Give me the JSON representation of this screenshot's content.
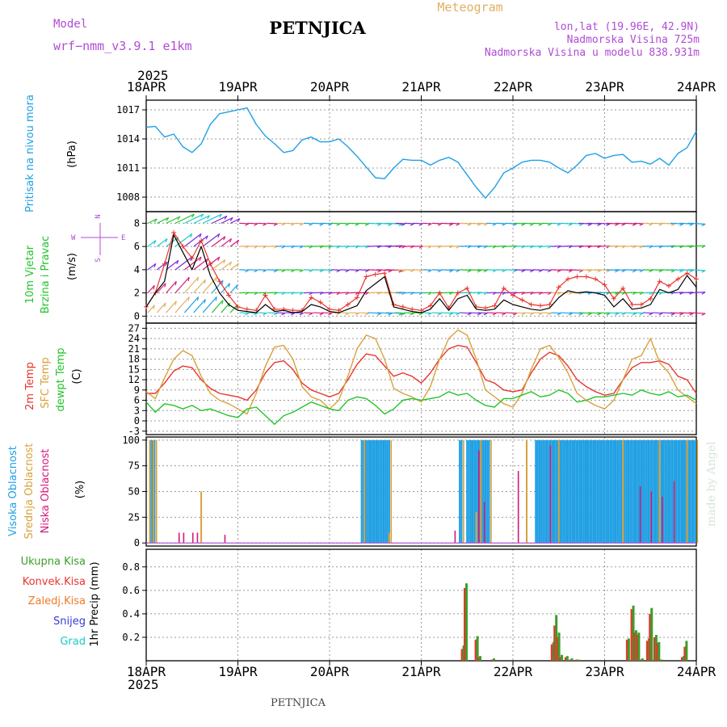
{
  "header": {
    "model_label": "Model",
    "model_name": "wrf−nmm_v3.9.1 e1km",
    "station_title": "PETNJICA",
    "meteogram_label": "Meteogram",
    "lonlat": "lon,lat (19.96E, 42.9N)",
    "altitude": "Nadmorska Visina 725m",
    "model_altitude": "Nadmorska Visina u modelu 838.931m",
    "watermark": "made by Angel",
    "footer_station": "PETNJICA",
    "year_top": "2025",
    "year_bottom": "2025"
  },
  "colors": {
    "pressure": "#1ea0e6",
    "temp2m": "#e8352d",
    "sfc_temp": "#d9a13a",
    "dewpoint": "#22c42a",
    "wind_speed": "#000000",
    "gust": "#e8352d",
    "high_cloud": "#1ea0e6",
    "mid_cloud": "#d9a13a",
    "low_cloud": "#d6197a",
    "total_precip": "#3a9e2a",
    "conv_precip": "#e8352d",
    "frozen_precip": "#f07a2a",
    "snow": "#3a3ad9",
    "graupel": "#1ec8c8",
    "model_label": "#b04bd6",
    "meteogram_label": "#e0b060"
  },
  "chart_data": [
    {
      "id": "pressure",
      "type": "line",
      "ylabel_colored": "Pritisak na nivou mora",
      "unit": "(hPa)",
      "x_ticks": [
        "18APR",
        "19APR",
        "20APR",
        "21APR",
        "22APR",
        "23APR",
        "24APR"
      ],
      "ylim": [
        1006.5,
        1018
      ],
      "yticks": [
        1008,
        1011,
        1014,
        1017
      ],
      "grid": true,
      "x": [
        0,
        0.1,
        0.2,
        0.3,
        0.4,
        0.5,
        0.6,
        0.7,
        0.8,
        0.9,
        1.0,
        1.1,
        1.2,
        1.3,
        1.4,
        1.5,
        1.6,
        1.7,
        1.8,
        1.9,
        2.0,
        2.1,
        2.2,
        2.3,
        2.4,
        2.5,
        2.6,
        2.7,
        2.8,
        2.9,
        3.0,
        3.1,
        3.2,
        3.3,
        3.4,
        3.5,
        3.6,
        3.7,
        3.8,
        3.9,
        4.0,
        4.1,
        4.2,
        4.3,
        4.4,
        4.5,
        4.6,
        4.7,
        4.8,
        4.9,
        5.0,
        5.1,
        5.2,
        5.3,
        5.4,
        5.5,
        5.6,
        5.7,
        5.8,
        5.9,
        6.0
      ],
      "values": [
        1015.2,
        1015.3,
        1014.2,
        1014.5,
        1013.2,
        1012.6,
        1013.5,
        1015.5,
        1016.6,
        1016.8,
        1017.0,
        1017.2,
        1015.5,
        1014.3,
        1013.5,
        1012.6,
        1012.8,
        1013.9,
        1014.2,
        1013.7,
        1013.7,
        1014.0,
        1013.2,
        1012.2,
        1011.1,
        1010.0,
        1009.9,
        1011.0,
        1011.9,
        1011.8,
        1011.8,
        1011.3,
        1011.8,
        1012.1,
        1011.6,
        1010.3,
        1009.0,
        1007.9,
        1009.0,
        1010.5,
        1011.0,
        1011.6,
        1011.8,
        1011.8,
        1011.6,
        1011.0,
        1010.5,
        1011.3,
        1012.3,
        1012.5,
        1012.0,
        1012.3,
        1012.4,
        1011.6,
        1011.7,
        1011.4,
        1012.0,
        1011.3,
        1012.5,
        1013.1,
        1014.8
      ]
    },
    {
      "id": "wind",
      "type": "line",
      "ylabel_colored": "10m Vjetar",
      "ylabel_colored_2": "Brzina i Pravac",
      "unit": "(m/s)",
      "compass": [
        "N",
        "W",
        "E",
        "S"
      ],
      "ylim": [
        -0.6,
        9
      ],
      "yticks": [
        0,
        2,
        4,
        6,
        8
      ],
      "grid": true,
      "x": [
        0,
        0.1,
        0.2,
        0.3,
        0.4,
        0.5,
        0.6,
        0.7,
        0.8,
        0.9,
        1.0,
        1.1,
        1.2,
        1.3,
        1.4,
        1.5,
        1.6,
        1.7,
        1.8,
        1.9,
        2.0,
        2.1,
        2.2,
        2.3,
        2.4,
        2.5,
        2.6,
        2.7,
        2.8,
        2.9,
        3.0,
        3.1,
        3.2,
        3.3,
        3.4,
        3.5,
        3.6,
        3.7,
        3.8,
        3.9,
        4.0,
        4.1,
        4.2,
        4.3,
        4.4,
        4.5,
        4.6,
        4.7,
        4.8,
        4.9,
        5.0,
        5.1,
        5.2,
        5.3,
        5.4,
        5.5,
        5.6,
        5.7,
        5.8,
        5.9,
        6.0
      ],
      "speed": [
        0.8,
        2.0,
        3.0,
        7.0,
        5.5,
        4.0,
        6.0,
        3.5,
        2.0,
        1.0,
        0.5,
        0.4,
        0.3,
        1.0,
        0.4,
        0.5,
        0.3,
        0.4,
        1.0,
        0.8,
        0.4,
        0.3,
        0.6,
        0.9,
        2.2,
        2.8,
        3.4,
        0.8,
        0.6,
        0.4,
        0.3,
        0.6,
        1.5,
        0.5,
        1.5,
        1.8,
        0.6,
        0.5,
        0.6,
        1.4,
        1.0,
        0.8,
        0.6,
        0.5,
        0.7,
        1.6,
        2.2,
        2.0,
        2.1,
        2.0,
        1.8,
        0.8,
        1.5,
        0.6,
        0.7,
        1.0,
        2.3,
        2.0,
        2.3,
        3.5,
        2.5
      ],
      "gust": [
        0.8,
        2.0,
        4.5,
        7.2,
        6.0,
        5.0,
        6.5,
        4.5,
        3.0,
        1.8,
        0.8,
        0.6,
        0.5,
        1.8,
        0.6,
        0.6,
        0.5,
        0.5,
        1.6,
        1.2,
        0.6,
        0.5,
        1.0,
        1.6,
        3.4,
        3.6,
        3.7,
        1.0,
        0.8,
        0.6,
        0.5,
        0.9,
        2.0,
        0.7,
        2.0,
        2.4,
        0.8,
        0.7,
        0.9,
        2.4,
        1.8,
        1.4,
        1.0,
        0.9,
        1.0,
        2.5,
        3.2,
        3.4,
        3.4,
        3.2,
        2.7,
        1.5,
        2.4,
        1.0,
        1.0,
        1.5,
        3.0,
        2.6,
        3.2,
        3.7,
        3.2
      ]
    },
    {
      "id": "temperature",
      "type": "line",
      "ylabel_series": [
        "2m Temp",
        "SFC Temp",
        "dewpt Temp"
      ],
      "unit": "(C)",
      "ylim": [
        -4,
        28.5
      ],
      "yticks": [
        -3,
        0,
        3,
        6,
        9,
        12,
        15,
        18,
        21,
        24,
        27
      ],
      "grid": true,
      "x": [
        0,
        0.1,
        0.2,
        0.3,
        0.4,
        0.5,
        0.6,
        0.7,
        0.8,
        0.9,
        1.0,
        1.1,
        1.2,
        1.3,
        1.4,
        1.5,
        1.6,
        1.7,
        1.8,
        1.9,
        2.0,
        2.1,
        2.2,
        2.3,
        2.4,
        2.5,
        2.6,
        2.7,
        2.8,
        2.9,
        3.0,
        3.1,
        3.2,
        3.3,
        3.4,
        3.5,
        3.6,
        3.7,
        3.8,
        3.9,
        4.0,
        4.1,
        4.2,
        4.3,
        4.4,
        4.5,
        4.6,
        4.7,
        4.8,
        4.9,
        5.0,
        5.1,
        5.2,
        5.3,
        5.4,
        5.5,
        5.6,
        5.7,
        5.8,
        5.9,
        6.0
      ],
      "series": [
        {
          "key": "temp2m",
          "values": [
            8.0,
            8.0,
            11.0,
            14.5,
            16.0,
            15.5,
            12.0,
            9.5,
            8.0,
            7.5,
            7.0,
            6.0,
            9.0,
            14.0,
            17.0,
            17.5,
            15.0,
            11.0,
            9.0,
            8.0,
            7.0,
            8.0,
            12.0,
            16.5,
            19.5,
            19.0,
            16.0,
            13.0,
            14.0,
            13.0,
            11.0,
            14.0,
            18.0,
            21.0,
            22.0,
            21.5,
            17.0,
            12.0,
            11.0,
            9.0,
            8.5,
            9.0,
            14.0,
            18.0,
            20.0,
            19.0,
            16.0,
            12.0,
            10.0,
            8.5,
            7.5,
            8.0,
            12.0,
            15.5,
            17.0,
            17.0,
            17.5,
            16.5,
            13.0,
            12.0,
            8.0
          ]
        },
        {
          "key": "sfc_temp",
          "values": [
            8.5,
            6.5,
            12.5,
            18.0,
            20.5,
            19.0,
            13.0,
            8.0,
            6.0,
            5.0,
            3.5,
            2.0,
            8.0,
            16.0,
            21.5,
            22.0,
            18.0,
            10.0,
            7.0,
            6.0,
            3.5,
            6.0,
            13.0,
            21.0,
            25.0,
            24.0,
            18.0,
            9.5,
            8.0,
            7.0,
            5.5,
            10.0,
            18.0,
            24.0,
            26.5,
            25.0,
            18.0,
            9.0,
            7.0,
            5.0,
            4.0,
            8.0,
            15.0,
            21.0,
            22.0,
            18.5,
            14.0,
            8.0,
            6.0,
            4.5,
            3.5,
            6.0,
            12.0,
            18.0,
            19.0,
            24.0,
            17.0,
            14.0,
            9.0,
            7.0,
            5.0
          ]
        },
        {
          "key": "dewpoint",
          "values": [
            5.5,
            2.5,
            5.0,
            4.5,
            3.5,
            4.5,
            3.0,
            3.5,
            2.5,
            1.5,
            1.0,
            3.5,
            4.0,
            1.5,
            -1.0,
            1.5,
            2.5,
            4.0,
            5.5,
            4.5,
            3.5,
            3.0,
            6.0,
            7.0,
            6.5,
            4.5,
            2.0,
            3.5,
            6.0,
            6.5,
            6.0,
            6.5,
            7.0,
            8.5,
            7.5,
            8.0,
            6.0,
            4.5,
            4.0,
            6.5,
            6.5,
            7.5,
            8.5,
            7.0,
            7.5,
            9.0,
            8.0,
            5.5,
            6.0,
            7.0,
            7.0,
            7.5,
            8.0,
            7.5,
            9.0,
            8.0,
            7.5,
            8.5,
            7.0,
            7.5,
            6.0
          ]
        }
      ]
    },
    {
      "id": "cloud",
      "type": "bar",
      "ylabel_series": [
        "Visoka Oblacnost",
        "Srednja Oblacnost",
        "Niska Oblacnost"
      ],
      "unit": "(%)",
      "ylim": [
        -3,
        103
      ],
      "yticks": [
        0,
        25,
        50,
        75,
        100
      ],
      "grid": true,
      "series": [
        {
          "key": "high_cloud",
          "start": [
            0.05,
            2.35,
            3.42,
            3.5,
            4.25,
            4.8,
            5.85
          ],
          "end": [
            0.1,
            2.65,
            3.44,
            3.75,
            4.8,
            5.85,
            6.0
          ],
          "value": 100
        },
        {
          "key": "mid_cloud",
          "points": [
            [
              0.04,
              100
            ],
            [
              0.08,
              100
            ],
            [
              0.6,
              50
            ],
            [
              2.38,
              100
            ],
            [
              2.65,
              10
            ],
            [
              3.6,
              30
            ],
            [
              3.65,
              100
            ],
            [
              4.15,
              100
            ],
            [
              4.5,
              100
            ],
            [
              5.2,
              100
            ],
            [
              5.6,
              100
            ],
            [
              5.9,
              100
            ]
          ]
        },
        {
          "key": "low_cloud",
          "points": [
            [
              0.35,
              10
            ],
            [
              0.4,
              10
            ],
            [
              0.5,
              10
            ],
            [
              0.55,
              10
            ],
            [
              0.85,
              8
            ],
            [
              3.36,
              12
            ],
            [
              3.62,
              90
            ],
            [
              3.68,
              40
            ],
            [
              4.05,
              70
            ],
            [
              4.4,
              95
            ],
            [
              5.38,
              55
            ],
            [
              5.5,
              50
            ],
            [
              5.62,
              45
            ],
            [
              5.75,
              60
            ]
          ]
        }
      ]
    },
    {
      "id": "precip",
      "type": "bar",
      "ylabel_series": [
        "Ukupna Kisa",
        "Konvek.Kisa",
        "Zaledj.Kisa",
        "Snijeg",
        "Grad"
      ],
      "ylabel_colored": "1hr Precip (mm)",
      "ylim": [
        0,
        0.95
      ],
      "yticks": [
        0.2,
        0.4,
        0.6,
        0.8
      ],
      "grid": true,
      "x": [
        3.45,
        3.48,
        3.6,
        3.63,
        3.78,
        4.43,
        4.46,
        4.49,
        4.52,
        4.58,
        4.63,
        4.7,
        5.25,
        5.3,
        5.33,
        5.36,
        5.4,
        5.47,
        5.5,
        5.55,
        5.58,
        5.61,
        5.85,
        5.88
      ],
      "total": [
        0.13,
        0.66,
        0.21,
        0.04,
        0.02,
        0.16,
        0.39,
        0.24,
        0.05,
        0.04,
        0.02,
        0.01,
        0.19,
        0.47,
        0.26,
        0.24,
        0.02,
        0.19,
        0.45,
        0.22,
        0.16,
        0.01,
        0.04,
        0.17
      ],
      "convective": [
        0.1,
        0.62,
        0.18,
        0.03,
        0.01,
        0.14,
        0.3,
        0.2,
        0.03,
        0.03,
        0.01,
        0.01,
        0.18,
        0.44,
        0.24,
        0.22,
        0.01,
        0.17,
        0.4,
        0.2,
        0.15,
        0.01,
        0.03,
        0.12
      ]
    }
  ]
}
